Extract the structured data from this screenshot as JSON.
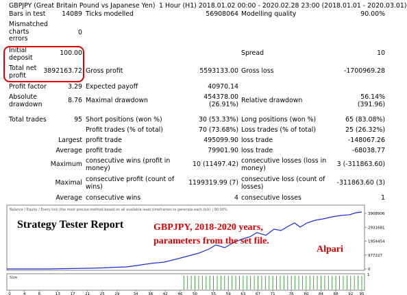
{
  "header": {
    "symbol": "GBPJPY (Great Britain Pound vs Japanese Yen)",
    "period": "1 Hour (H1) 2018.01.02 00:00 - 2020.02.28 23:00 (2018.01.01 - 2020.03.01)"
  },
  "rows": {
    "bars_label": "Bars in test",
    "bars": "14089",
    "ticks_label": "Ticks modelled",
    "ticks": "56908064",
    "mq_label": "Modelling quality",
    "mq": "90.00%",
    "mismatched_label": "Mismatched charts errors",
    "mismatched": "0",
    "deposit_label": "Initial deposit",
    "deposit": "100.00",
    "spread_label": "Spread",
    "spread": "10",
    "netprofit_label": "Total net profit",
    "netprofit": "3892163.72",
    "grossprofit_label": "Gross profit",
    "grossprofit": "5593133.00",
    "grossloss_label": "Gross loss",
    "grossloss": "-1700969.28",
    "pf_label": "Profit factor",
    "pf": "3.29",
    "ep_label": "Expected payoff",
    "ep": "40970.14",
    "absdd_label": "Absolute drawdown",
    "absdd": "8.76",
    "maxdd_label": "Maximal drawdown",
    "maxdd": "454378.00 (26.91%)",
    "reldd_label": "Relative drawdown",
    "reldd": "56.14% (391.96)",
    "trades_label": "Total trades",
    "trades": "95",
    "short_label": "Short positions (won %)",
    "short": "30 (53.33%)",
    "long_label": "Long positions (won %)",
    "long": "65 (83.08%)",
    "pt_label": "Profit trades (% of total)",
    "pt": "70 (73.68%)",
    "lt_label": "Loss trades (% of total)",
    "lt": "25 (26.32%)",
    "largest": "Largest",
    "lpt_label": "profit trade",
    "lpt": "495099.90",
    "llt_label": "loss trade",
    "llt": "-148067.26",
    "average": "Average",
    "apt_label": "profit trade",
    "apt": "79901.90",
    "alt_label": "loss trade",
    "alt": "-68038.77",
    "maximum": "Maximum",
    "mcw_label": "consecutive wins (profit in money)",
    "mcw": "10 (11497.42)",
    "mcl_label": "consecutive losses (loss in money)",
    "mcl": "3 (-311863.60)",
    "maximal": "Maximal",
    "mcp_label": "consecutive profit (count of wins)",
    "mcp": "1199319.99 (7)",
    "mcls_label": "consecutive loss (count of losses)",
    "mcls": "-311863.60 (3)",
    "average2": "Average",
    "acw_label": "consecutive wins",
    "acw": "4",
    "acl_label": "consecutive losses",
    "acl": "1"
  },
  "chart": {
    "legend": "Balance / Equity / Every tick (the most precise method based on all available least timeframes to generate each tick) | 90.00%",
    "y_ticks": [
      "3908906",
      "2931681",
      "1954454",
      "977227",
      "0"
    ],
    "x_ticks": [
      "0",
      "4",
      "8",
      "13",
      "17",
      "21",
      "25",
      "29",
      "34",
      "38",
      "42",
      "46",
      "50",
      "55",
      "59",
      "63",
      "67",
      "71",
      "76",
      "80",
      "84",
      "88",
      "92",
      "95"
    ],
    "size_label": "Size",
    "size_level": "1",
    "balance_color": "#1a2bd6",
    "equity_color": "#2ca02c"
  },
  "overlay": {
    "title": "Strategy Tester Report",
    "note_line1": "GBPJPY,  2018-2020 years,",
    "note_line2": "parameters from the set file.",
    "broker": "Alpari",
    "title_color": "#000000",
    "note_color": "#e00000"
  }
}
